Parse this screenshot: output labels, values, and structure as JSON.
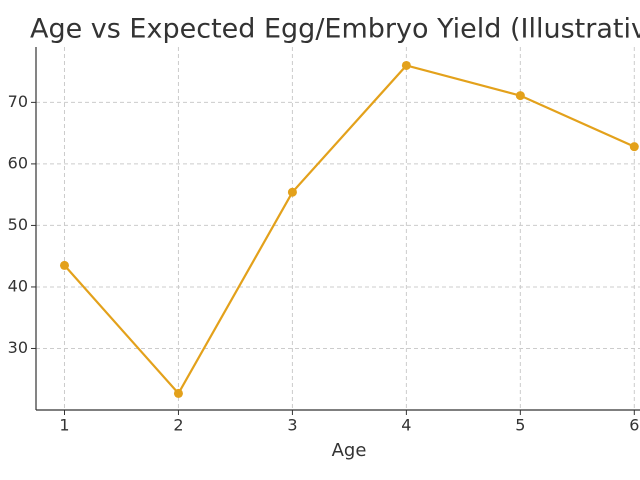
{
  "chart_data": {
    "type": "line",
    "title": "Age vs Expected Egg/Embryo Yield (Illustrativ",
    "x_label": "Age",
    "x": [
      1,
      2,
      3,
      4,
      5,
      6
    ],
    "values": [
      43.5,
      22.7,
      55.4,
      76.0,
      71.1,
      62.8
    ],
    "color": "#e3a11b",
    "xlim": [
      0.75,
      6.05
    ],
    "xticks": [
      1,
      2,
      3,
      4,
      5,
      6
    ],
    "ylim": [
      20,
      79
    ],
    "yticks": [
      30,
      40,
      50,
      60,
      70
    ],
    "grid": true
  }
}
